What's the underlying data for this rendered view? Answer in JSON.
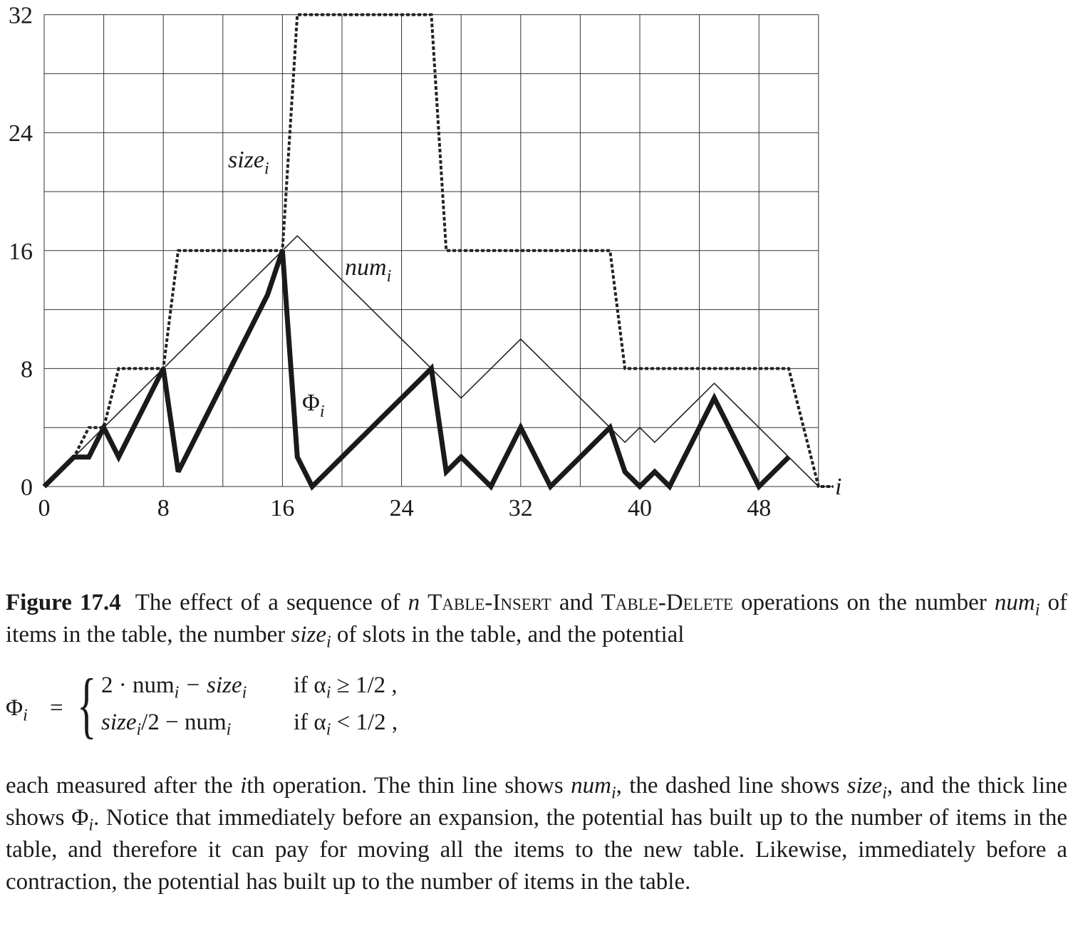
{
  "chart_data": {
    "type": "line",
    "x": [
      0,
      1,
      2,
      3,
      4,
      5,
      6,
      7,
      8,
      9,
      10,
      11,
      12,
      13,
      14,
      15,
      16,
      17,
      18,
      19,
      20,
      21,
      22,
      23,
      24,
      25,
      26,
      27,
      28,
      29,
      30,
      31,
      32,
      33,
      34,
      35,
      36,
      37,
      38,
      39,
      40,
      41,
      42,
      43,
      44,
      45,
      46,
      47,
      48,
      49,
      50,
      51,
      52,
      53
    ],
    "series": [
      {
        "name": "num_i",
        "style": "thin",
        "values": [
          0,
          1,
          2,
          3,
          4,
          5,
          6,
          7,
          8,
          9,
          10,
          11,
          12,
          13,
          14,
          15,
          16,
          17,
          16,
          15,
          14,
          13,
          12,
          11,
          10,
          9,
          8,
          7,
          6,
          7,
          8,
          9,
          10,
          9,
          8,
          7,
          6,
          5,
          4,
          3,
          4,
          3,
          4,
          5,
          6,
          7,
          6,
          5,
          4,
          3,
          2,
          1,
          0,
          0
        ]
      },
      {
        "name": "size_i",
        "style": "dashed",
        "values": [
          0,
          1,
          2,
          4,
          4,
          8,
          8,
          8,
          8,
          16,
          16,
          16,
          16,
          16,
          16,
          16,
          16,
          32,
          32,
          32,
          32,
          32,
          32,
          32,
          32,
          32,
          32,
          16,
          16,
          16,
          16,
          16,
          16,
          16,
          16,
          16,
          16,
          16,
          16,
          8,
          8,
          8,
          8,
          8,
          8,
          8,
          8,
          8,
          8,
          8,
          8,
          4,
          0,
          0
        ]
      },
      {
        "name": "Φ_i",
        "style": "thick",
        "values": [
          0,
          1,
          2,
          2,
          4,
          2,
          4,
          6,
          8,
          1,
          3,
          5,
          7,
          9,
          11,
          13,
          16,
          2,
          0,
          1,
          2,
          3,
          4,
          5,
          6,
          7,
          8,
          1,
          2,
          1,
          0,
          2,
          4,
          2,
          0,
          1,
          2,
          3,
          4,
          1,
          0,
          1,
          0,
          2,
          4,
          6,
          4,
          2,
          0,
          1,
          2,
          null,
          null,
          null
        ]
      }
    ],
    "xticks": [
      "0",
      "8",
      "16",
      "24",
      "32",
      "40",
      "48"
    ],
    "yticks": [
      "0",
      "8",
      "16",
      "24",
      "32"
    ],
    "xlim": [
      0,
      52
    ],
    "ylim": [
      0,
      32
    ],
    "xlabel": "i",
    "grid": true,
    "inline_labels": [
      {
        "base": "size",
        "sub": "i"
      },
      {
        "base": "num",
        "sub": "i"
      },
      {
        "base": "Φ",
        "sub": "i"
      }
    ]
  },
  "caption": {
    "figure_label": "Figure 17.4",
    "p1_text_1": "The effect of a sequence of ",
    "p1_n": "n",
    "p1_op1": "Table-Insert",
    "p1_and": " and ",
    "p1_op2": "Table-Delete",
    "p1_text_2": " operations on the number ",
    "p1_num": "num",
    "p1_text_3": " of items in the table, the number ",
    "p1_size": "size",
    "p1_text_4": " of slots in the table, and the potential",
    "sub_i": "i",
    "formula": {
      "lhs": "Φ",
      "eq": "=",
      "brace": "{",
      "row1_expr": "2 · num",
      "row1_minus": " − size",
      "row1_cond": "if α",
      "row1_rel": " ≥ 1/2 ,",
      "row2_expr": "size",
      "row2_mid": "/2 − num",
      "row2_cond": "if α",
      "row2_rel": " < 1/2 ,"
    },
    "p2_text_1": "each measured after the ",
    "p2_i": "i",
    "p2_text_2": "th operation. The thin line shows ",
    "p2_num": "num",
    "p2_text_3": ", the dashed line shows ",
    "p2_size": "size",
    "p2_text_4": ", and the thick line shows ",
    "p2_phi": "Φ",
    "p2_text_5": ". Notice that immediately before an expansion, the potential has built up to the number of items in the table, and therefore it can pay for moving all the items to the new table. Likewise, immediately before a contraction, the potential has built up to the number of items in the table."
  }
}
